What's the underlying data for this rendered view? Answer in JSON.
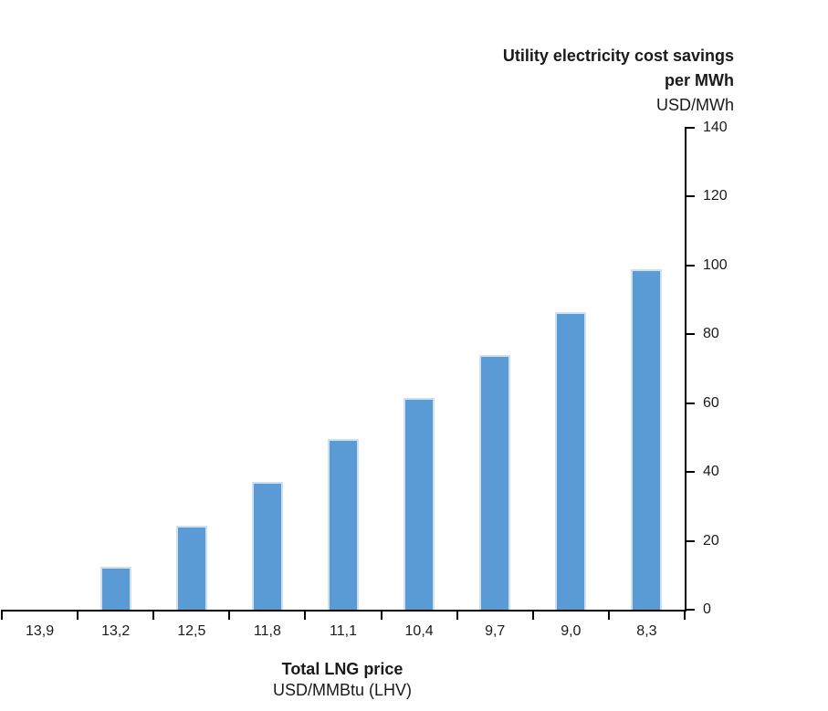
{
  "chart": {
    "title_line1": "Utility electricity cost savings",
    "title_line2": "per MWh",
    "y_unit": "USD/MWh",
    "x_title": "Total LNG price",
    "x_unit": "USD/MMBtu (LHV)"
  },
  "chart_data": {
    "type": "bar",
    "title": "Utility electricity cost savings per MWh",
    "ylabel": "USD/MWh",
    "xlabel": "Total LNG price USD/MMBtu (LHV)",
    "categories": [
      "13,9",
      "13,2",
      "12,5",
      "11,8",
      "11,1",
      "10,4",
      "9,7",
      "9,0",
      "8,3"
    ],
    "values": [
      0,
      12.5,
      24.5,
      37,
      49.5,
      61.5,
      74,
      86.5,
      99
    ],
    "ylim": [
      0,
      140
    ],
    "y_ticks": [
      0,
      20,
      40,
      60,
      80,
      100,
      120,
      140
    ],
    "y_axis_side": "right",
    "grid": false,
    "legend": "none",
    "colors": {
      "bar_fill": "#5B9BD5",
      "bar_border": "#CEE0F2",
      "axis": "#000000",
      "text": "#1A1A1A"
    }
  }
}
